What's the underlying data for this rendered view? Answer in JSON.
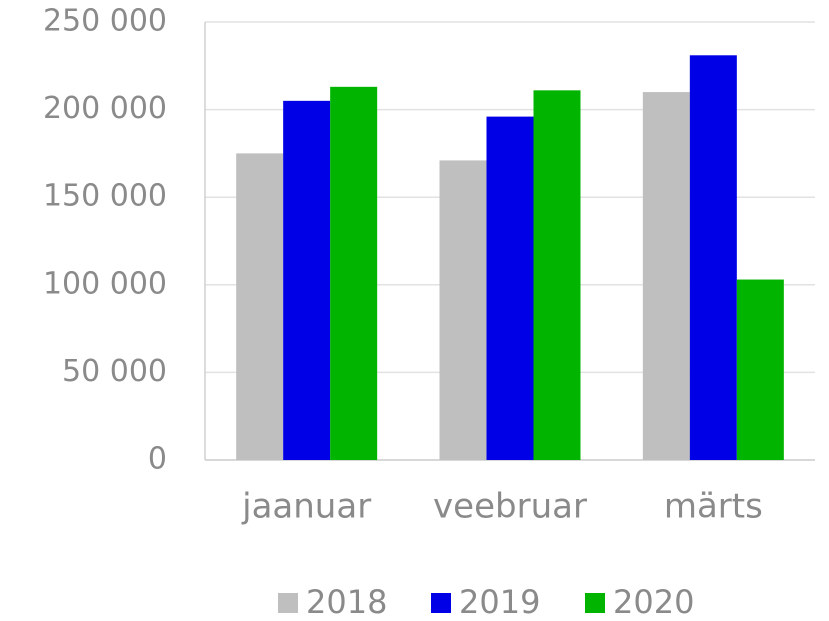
{
  "chart_data": {
    "type": "bar",
    "categories": [
      "jaanuar",
      "veebruar",
      "märts"
    ],
    "series": [
      {
        "name": "2018",
        "color": "#bfbfbf",
        "values": [
          175000,
          171000,
          210000
        ]
      },
      {
        "name": "2019",
        "color": "#0000e6",
        "values": [
          205000,
          196000,
          231000
        ]
      },
      {
        "name": "2020",
        "color": "#00b400",
        "values": [
          213000,
          211000,
          103000
        ]
      }
    ],
    "ylim": [
      0,
      250000
    ],
    "yticks": [
      0,
      {
        "value": 50000,
        "label": "50 000"
      },
      {
        "value": 100000,
        "label": "100 000"
      },
      {
        "value": 150000,
        "label": "150 000"
      },
      {
        "value": 200000,
        "label": "200 000"
      },
      {
        "value": 250000,
        "label": "250 000"
      }
    ],
    "grid": true,
    "legend": "bottom"
  }
}
